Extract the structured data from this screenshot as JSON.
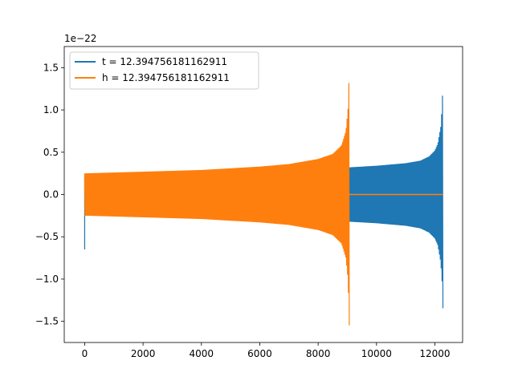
{
  "chart_data": {
    "type": "line",
    "title": "",
    "xlabel": "",
    "ylabel": "",
    "y_offset_text": "1e−22",
    "xlim": [
      -700,
      12950
    ],
    "ylim": [
      -1.75,
      1.75
    ],
    "xticks": [
      0,
      2000,
      4000,
      6000,
      8000,
      10000,
      12000
    ],
    "yticks": [
      -1.5,
      -1.0,
      -0.5,
      0.0,
      0.5,
      1.0,
      1.5
    ],
    "ytick_labels": [
      "−1.5",
      "−1.0",
      "−0.5",
      "0.0",
      "0.5",
      "1.0",
      "1.5"
    ],
    "grid": false,
    "legend_position": "upper-left",
    "series": [
      {
        "name": "t = 12.394756181162911",
        "color": "#1f77b4",
        "x_start": 0,
        "x_end": 12290,
        "initial_spike": [
          0.1,
          -0.65
        ],
        "envelope_x": [
          0,
          2000,
          4000,
          6000,
          8000,
          9000,
          10000,
          11000,
          11500,
          11800,
          12000,
          12100,
          12200,
          12250,
          12280,
          12290
        ],
        "envelope_y": [
          0.21,
          0.22,
          0.23,
          0.24,
          0.26,
          0.32,
          0.34,
          0.37,
          0.4,
          0.45,
          0.52,
          0.6,
          0.8,
          1.05,
          1.4,
          1.58
        ],
        "envelope_y_lower": [
          -0.21,
          -0.22,
          -0.23,
          -0.24,
          -0.26,
          -0.32,
          -0.34,
          -0.37,
          -0.4,
          -0.45,
          -0.52,
          -0.6,
          -0.8,
          -1.05,
          -1.4,
          -1.6
        ]
      },
      {
        "name": "h = 12.394756181162911",
        "color": "#ff7f0e",
        "x_start": 0,
        "x_end": 9070,
        "tail_x_end": 12290,
        "tail_value": 0.0,
        "envelope_x": [
          0,
          2000,
          4000,
          6000,
          7000,
          8000,
          8500,
          8800,
          8950,
          9020,
          9050,
          9070
        ],
        "envelope_y": [
          0.25,
          0.27,
          0.29,
          0.33,
          0.36,
          0.42,
          0.48,
          0.58,
          0.75,
          1.0,
          1.3,
          1.58
        ],
        "envelope_y_lower": [
          -0.25,
          -0.27,
          -0.29,
          -0.33,
          -0.36,
          -0.42,
          -0.48,
          -0.58,
          -0.75,
          -1.0,
          -1.3,
          -1.6
        ]
      }
    ]
  }
}
